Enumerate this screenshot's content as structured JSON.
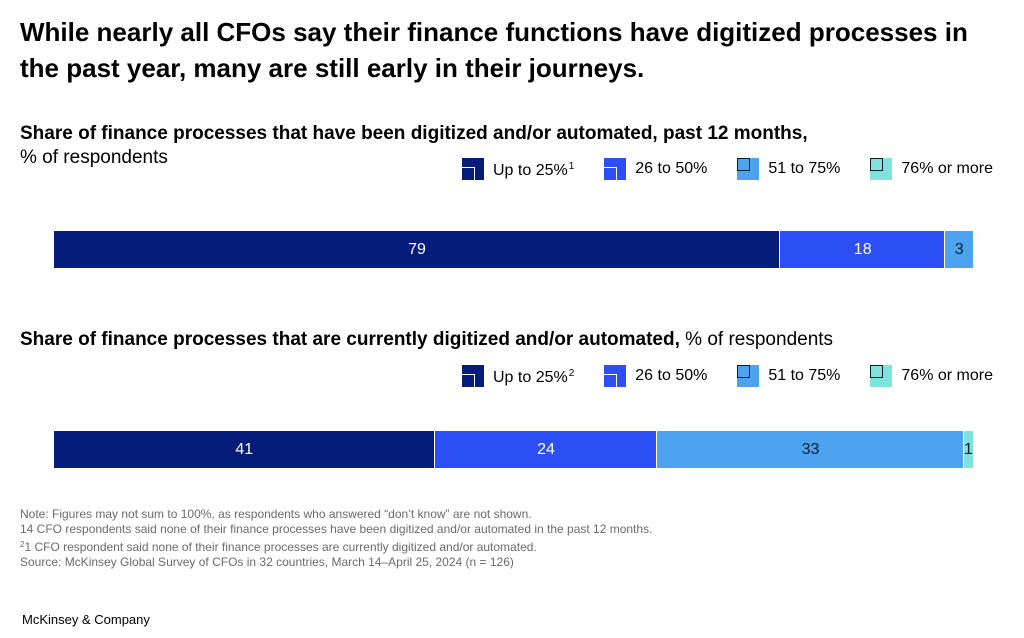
{
  "title": "While nearly all CFOs say their finance functions have digitized processes in the past year, many are still early in their journeys.",
  "chart_data": [
    {
      "type": "bar",
      "orientation": "horizontal",
      "stacked": true,
      "title": "Share of finance processes that have been digitized and/or automated, past 12 months,",
      "unit": "% of respondents",
      "xlim": [
        0,
        100
      ],
      "legend_position": "top-right",
      "grid": false,
      "series": [
        {
          "name": "Up to 25%",
          "footnote": "1",
          "values": [
            79
          ],
          "color": "#051C7A",
          "label_color": "#FFFFFF"
        },
        {
          "name": "26 to 50%",
          "values": [
            18
          ],
          "color": "#2B4FF5",
          "label_color": "#FFFFFF"
        },
        {
          "name": "51 to 75%",
          "values": [
            3
          ],
          "color": "#4DA3EF",
          "label_color": "#051C2C"
        },
        {
          "name": "76% or more",
          "values": [
            0
          ],
          "color": "#7EE3DD",
          "label_color": "#051C2C"
        }
      ],
      "data_labels": [
        "79",
        "18",
        "3",
        ""
      ]
    },
    {
      "type": "bar",
      "orientation": "horizontal",
      "stacked": true,
      "title": "Share of finance processes that are currently digitized and/or automated,",
      "unit": "% of respondents",
      "xlim": [
        0,
        100
      ],
      "legend_position": "top-right",
      "grid": false,
      "series": [
        {
          "name": "Up to 25%",
          "footnote": "2",
          "values": [
            41
          ],
          "color": "#051C7A",
          "label_color": "#FFFFFF"
        },
        {
          "name": "26 to 50%",
          "values": [
            24
          ],
          "color": "#2B4FF5",
          "label_color": "#FFFFFF"
        },
        {
          "name": "51 to 75%",
          "values": [
            33
          ],
          "color": "#4DA3EF",
          "label_color": "#051C2C"
        },
        {
          "name": "76% or more",
          "values": [
            1
          ],
          "color": "#7EE3DD",
          "label_color": "#051C2C"
        }
      ],
      "data_labels": [
        "41",
        "24",
        "33",
        "1"
      ]
    }
  ],
  "notes": {
    "line1": "Note: Figures may not sum to 100%, as respondents who answered “don’t know” are not shown.",
    "line2": "14 CFO respondents said none of their finance processes have been digitized and/or automated in the past 12 months.",
    "line3_sup": "2",
    "line3": "1 CFO respondent said none of their finance processes are currently digitized and/or automated.",
    "line4": "Source: McKinsey Global Survey of CFOs in 32 countries, March 14–April 25, 2024 (n = 126)"
  },
  "brand": "McKinsey & Company"
}
